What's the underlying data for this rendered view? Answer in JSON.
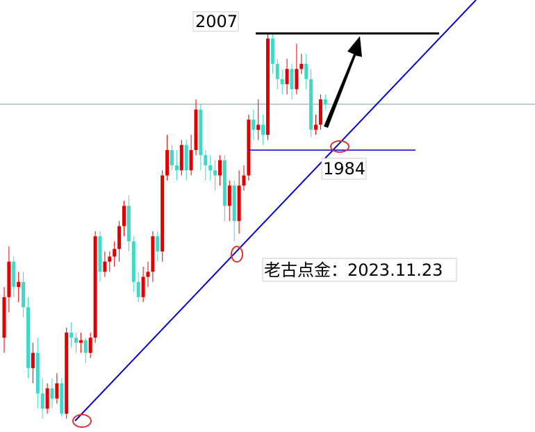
{
  "chart_data": {
    "type": "candlestick",
    "up_color": "#e00000",
    "down_color": "#40d8c8",
    "level_colors": [
      "#000000",
      "#0000cc"
    ],
    "levels": [
      2007,
      1984
    ],
    "annotation": "老古点金：2023.11.23",
    "ylim": [
      1928.4,
      2013.6
    ],
    "open": [
      1947,
      1955,
      1962,
      1957,
      1958,
      1953,
      1941,
      1944,
      1936,
      1933,
      1937,
      1935,
      1938,
      1932,
      1948,
      1947,
      1946,
      1946.5,
      1944,
      1947,
      1967,
      1960,
      1962,
      1963,
      1964.5,
      1969,
      1973,
      1966,
      1958,
      1955,
      1959,
      1960,
      1967,
      1964,
      1979,
      1984,
      1981,
      1980,
      1985,
      1980,
      1984,
      1992,
      1983,
      1981,
      1980,
      1979,
      1982,
      1973,
      1977,
      1970,
      1977,
      1979,
      1990,
      1988,
      1989,
      1987,
      2006,
      2001,
      1998,
      1997,
      2000,
      1996,
      2000,
      2001,
      1998,
      1988,
      1989,
      1994
    ],
    "high": [
      1957,
      1965,
      1963,
      1960,
      1960,
      1955,
      1946,
      1947,
      1939,
      1938,
      1939,
      1940,
      1939,
      1949,
      1950,
      1948,
      1948,
      1947,
      1948,
      1968,
      1968,
      1964,
      1964,
      1966,
      1970,
      1974,
      1975,
      1967,
      1960,
      1961,
      1962,
      1968,
      1968,
      1980,
      1987,
      1985,
      1984,
      1986,
      1986,
      1987,
      1994,
      1993,
      1984,
      1983,
      1982,
      1983,
      1983,
      1978,
      1978,
      1980,
      1981,
      1991,
      1992,
      1994,
      1991,
      2007,
      2007,
      2002,
      2000,
      2002,
      2001,
      2005,
      2003,
      2003,
      2000,
      1991,
      1995,
      1995
    ],
    "low": [
      1944,
      1952,
      1955,
      1954,
      1951,
      1939,
      1938,
      1933,
      1931,
      1932,
      1933,
      1934,
      1931.4,
      1931,
      1945,
      1944,
      1944,
      1942,
      1943,
      1946,
      1958,
      1959,
      1960,
      1961,
      1962,
      1967,
      1964,
      1956,
      1954,
      1954,
      1957,
      1958,
      1962,
      1962,
      1978,
      1980,
      1978,
      1979,
      1978,
      1979,
      1983,
      1980,
      1978,
      1978,
      1976,
      1977,
      1970,
      1970,
      1966,
      1967.5,
      1976,
      1978,
      1986,
      1986,
      1985,
      1986,
      1999,
      1996,
      1995,
      1995,
      1994,
      1995,
      1999,
      1996,
      1986.5,
      1987,
      1988,
      1992
    ],
    "close": [
      1955,
      1962,
      1957,
      1958,
      1953,
      1941,
      1944,
      1936,
      1933,
      1937,
      1935,
      1938,
      1932,
      1948,
      1947,
      1946,
      1946.5,
      1944,
      1947,
      1967,
      1960,
      1962,
      1963,
      1964.5,
      1969,
      1973,
      1966,
      1958,
      1955,
      1959,
      1960,
      1967,
      1964,
      1979,
      1984,
      1981,
      1980,
      1985,
      1980,
      1984,
      1992,
      1983,
      1981,
      1980,
      1979,
      1982,
      1973,
      1977,
      1970,
      1977,
      1979,
      1990,
      1988,
      1989,
      1987,
      2006,
      2001,
      1998,
      1997,
      2000,
      1996,
      2000,
      2001,
      1998,
      1988,
      1989,
      1994,
      1993
    ]
  }
}
